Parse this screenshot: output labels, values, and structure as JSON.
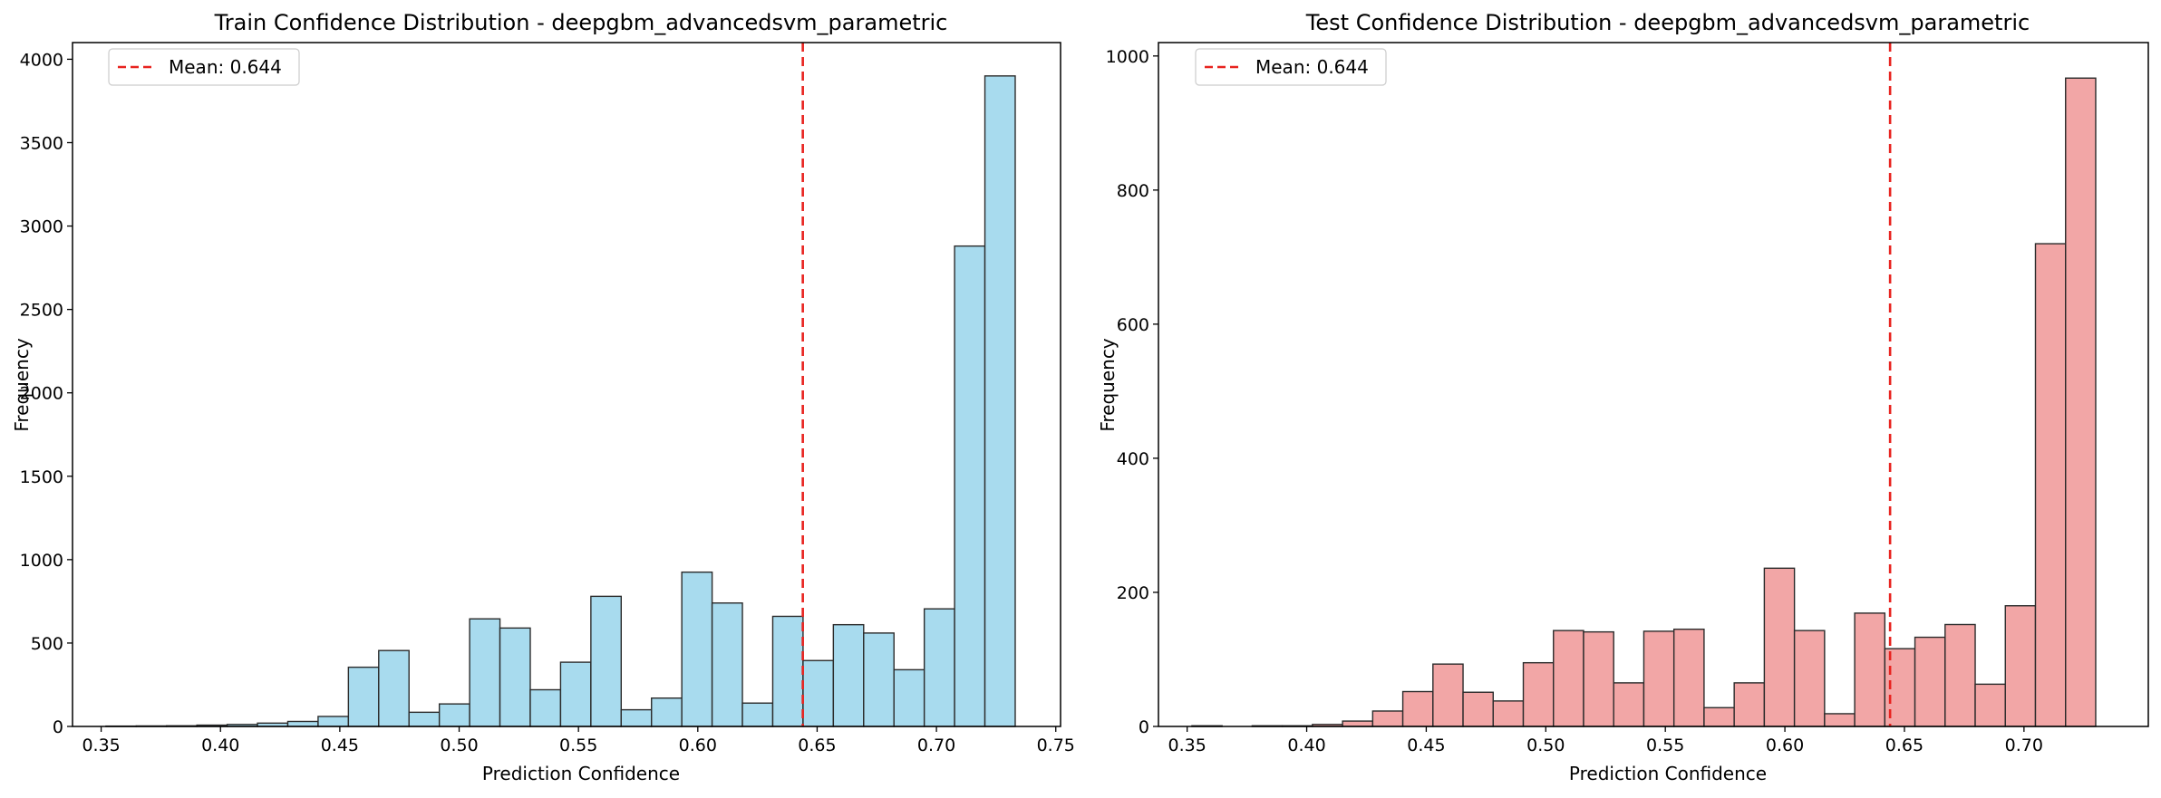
{
  "chart_data": [
    {
      "type": "bar",
      "title": "Train Confidence Distribution - deepgbm_advancedsvm_parametric",
      "xlabel": "Prediction Confidence",
      "ylabel": "Frequency",
      "xlim": [
        0.338,
        0.752
      ],
      "ylim": [
        0,
        4100
      ],
      "xticks": [
        "0.35",
        "0.40",
        "0.45",
        "0.50",
        "0.55",
        "0.60",
        "0.65",
        "0.70",
        "0.75"
      ],
      "yticks": [
        "0",
        "500",
        "1000",
        "1500",
        "2000",
        "2500",
        "3000",
        "3500",
        "4000"
      ],
      "bin_start": 0.352,
      "bin_width": 0.0127,
      "values": [
        2,
        3,
        4,
        8,
        12,
        20,
        30,
        60,
        355,
        455,
        85,
        135,
        645,
        590,
        220,
        385,
        780,
        100,
        170,
        925,
        740,
        140,
        660,
        395,
        610,
        560,
        340,
        705,
        2880,
        3900
      ],
      "bar_color": "#a8dbee",
      "edge_color": "#2b2b2b",
      "mean_line": {
        "value": 0.644,
        "color": "#e8231f",
        "label": "Mean: 0.644"
      },
      "legend": {
        "position": "top-left",
        "entries": [
          "Mean: 0.644"
        ]
      },
      "grid": false
    },
    {
      "type": "bar",
      "title": "Test Confidence Distribution - deepgbm_advancedsvm_parametric",
      "xlabel": "Prediction Confidence",
      "ylabel": "Frequency",
      "xlim": [
        0.338,
        0.752
      ],
      "ylim": [
        0,
        1020
      ],
      "xticks": [
        "0.35",
        "0.40",
        "0.45",
        "0.50",
        "0.55",
        "0.60",
        "0.65",
        "0.70"
      ],
      "yticks": [
        "0",
        "200",
        "400",
        "600",
        "800",
        "1000"
      ],
      "bin_start": 0.352,
      "bin_width": 0.0126,
      "values": [
        1,
        0,
        1,
        1,
        3,
        8,
        23,
        52,
        93,
        51,
        38,
        95,
        143,
        141,
        65,
        142,
        145,
        28,
        65,
        236,
        143,
        19,
        169,
        116,
        133,
        152,
        63,
        180,
        720,
        967
      ],
      "bar_color": "#f2a6a6",
      "edge_color": "#2b2b2b",
      "mean_line": {
        "value": 0.644,
        "color": "#e8231f",
        "label": "Mean: 0.644"
      },
      "legend": {
        "position": "top-left",
        "entries": [
          "Mean: 0.644"
        ]
      },
      "grid": false
    }
  ]
}
